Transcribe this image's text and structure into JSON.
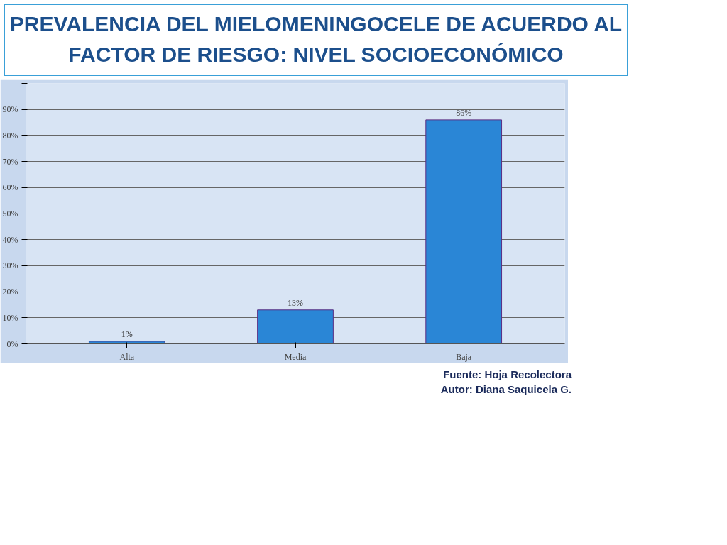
{
  "chart_data": {
    "type": "bar",
    "title": "PREVALENCIA DEL MIELOMENINGOCELE DE ACUERDO AL FACTOR DE RIESGO:  NIVEL SOCIOECONÓMICO",
    "categories": [
      "Alta",
      "Media",
      "Baja"
    ],
    "values": [
      1,
      13,
      86
    ],
    "value_labels": [
      "1%",
      "13%",
      "86%"
    ],
    "color": "#2a86d6",
    "ylim": [
      0,
      100
    ],
    "yticks": [
      {
        "value": 0,
        "label": "0%"
      },
      {
        "value": 10,
        "label": "10%"
      },
      {
        "value": 20,
        "label": "20%"
      },
      {
        "value": 30,
        "label": "30%"
      },
      {
        "value": 40,
        "label": "40%"
      },
      {
        "value": 50,
        "label": "50%"
      },
      {
        "value": 60,
        "label": "60%"
      },
      {
        "value": 70,
        "label": "70%"
      },
      {
        "value": 80,
        "label": "80%"
      },
      {
        "value": 90,
        "label": "90%"
      },
      {
        "value": 100,
        "label": null
      }
    ],
    "grid": "y",
    "annotations": [
      "Fuente: Hoja Recolectora",
      "Autor: Diana Saquicela G."
    ]
  }
}
